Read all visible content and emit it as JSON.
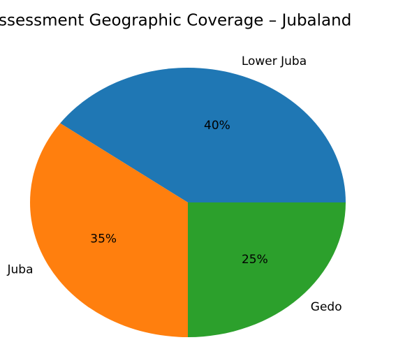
{
  "chart_data": {
    "type": "pie",
    "title": "ssessment Geographic Coverage – Jubaland",
    "categories": [
      "Lower Juba",
      "Juba",
      "Gedo"
    ],
    "values": [
      40,
      35,
      25
    ],
    "value_labels": [
      "40%",
      "35%",
      "25%"
    ],
    "colors": [
      "#1f77b4",
      "#ff7f0e",
      "#2ca02c"
    ]
  }
}
